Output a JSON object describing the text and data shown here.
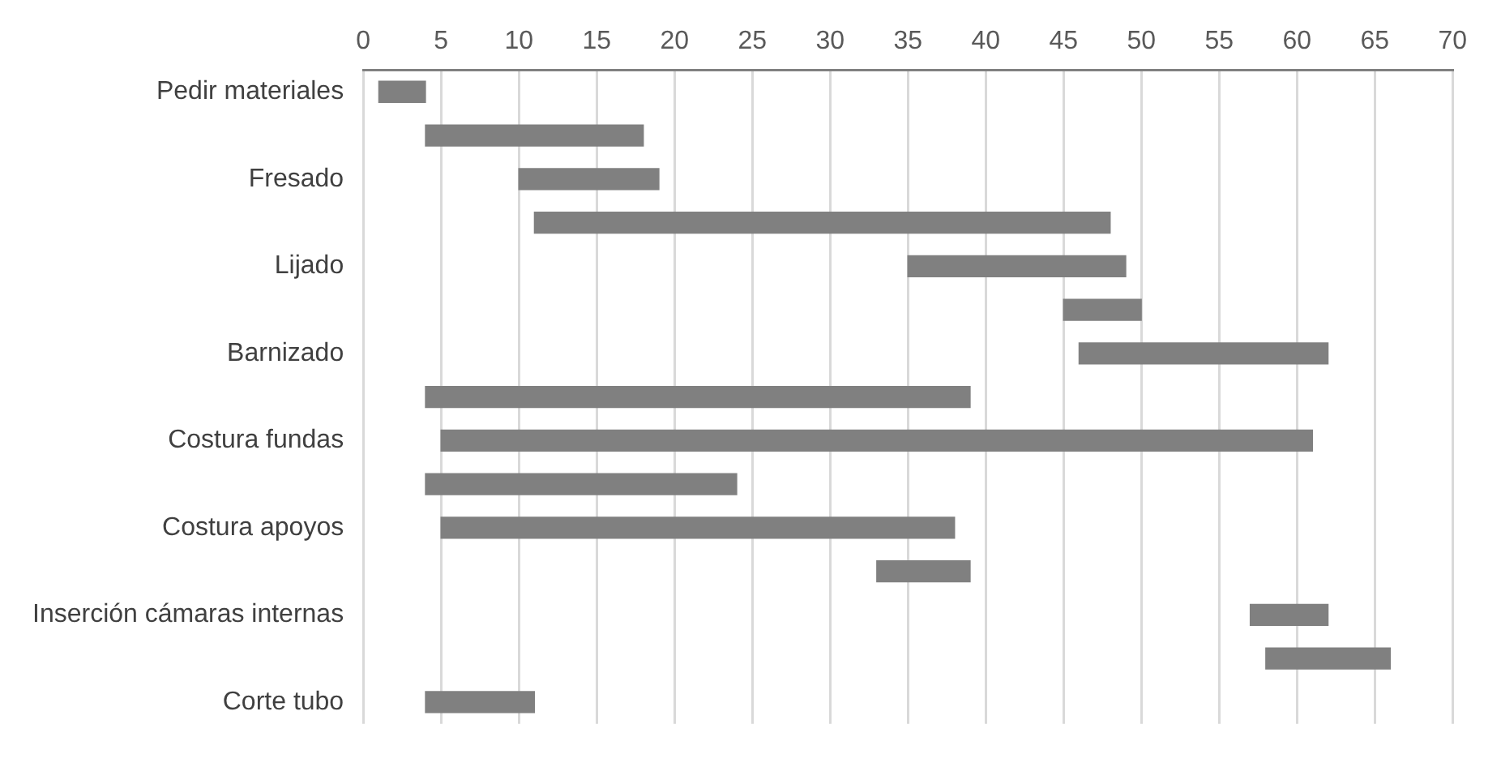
{
  "chart_data": {
    "type": "bar",
    "orientation": "horizontal",
    "categories": [
      "Pedir materiales",
      null,
      "Fresado",
      null,
      "Lijado",
      null,
      "Barnizado",
      null,
      "Costura fundas",
      null,
      "Costura apoyos",
      null,
      "Inserción cámaras internas",
      null,
      "Corte tubo"
    ],
    "base": [
      1,
      4,
      10,
      11,
      35,
      45,
      46,
      4,
      5,
      4,
      5,
      33,
      57,
      58,
      4
    ],
    "values": [
      3,
      14,
      9,
      37,
      14,
      5,
      16,
      35,
      56,
      20,
      33,
      6,
      5,
      8,
      7
    ],
    "color": "#808080",
    "xlim": [
      0,
      70
    ],
    "xticks": [
      0,
      5,
      10,
      15,
      20,
      25,
      30,
      35,
      40,
      45,
      50,
      55,
      60,
      65,
      70
    ],
    "grid": "x"
  }
}
